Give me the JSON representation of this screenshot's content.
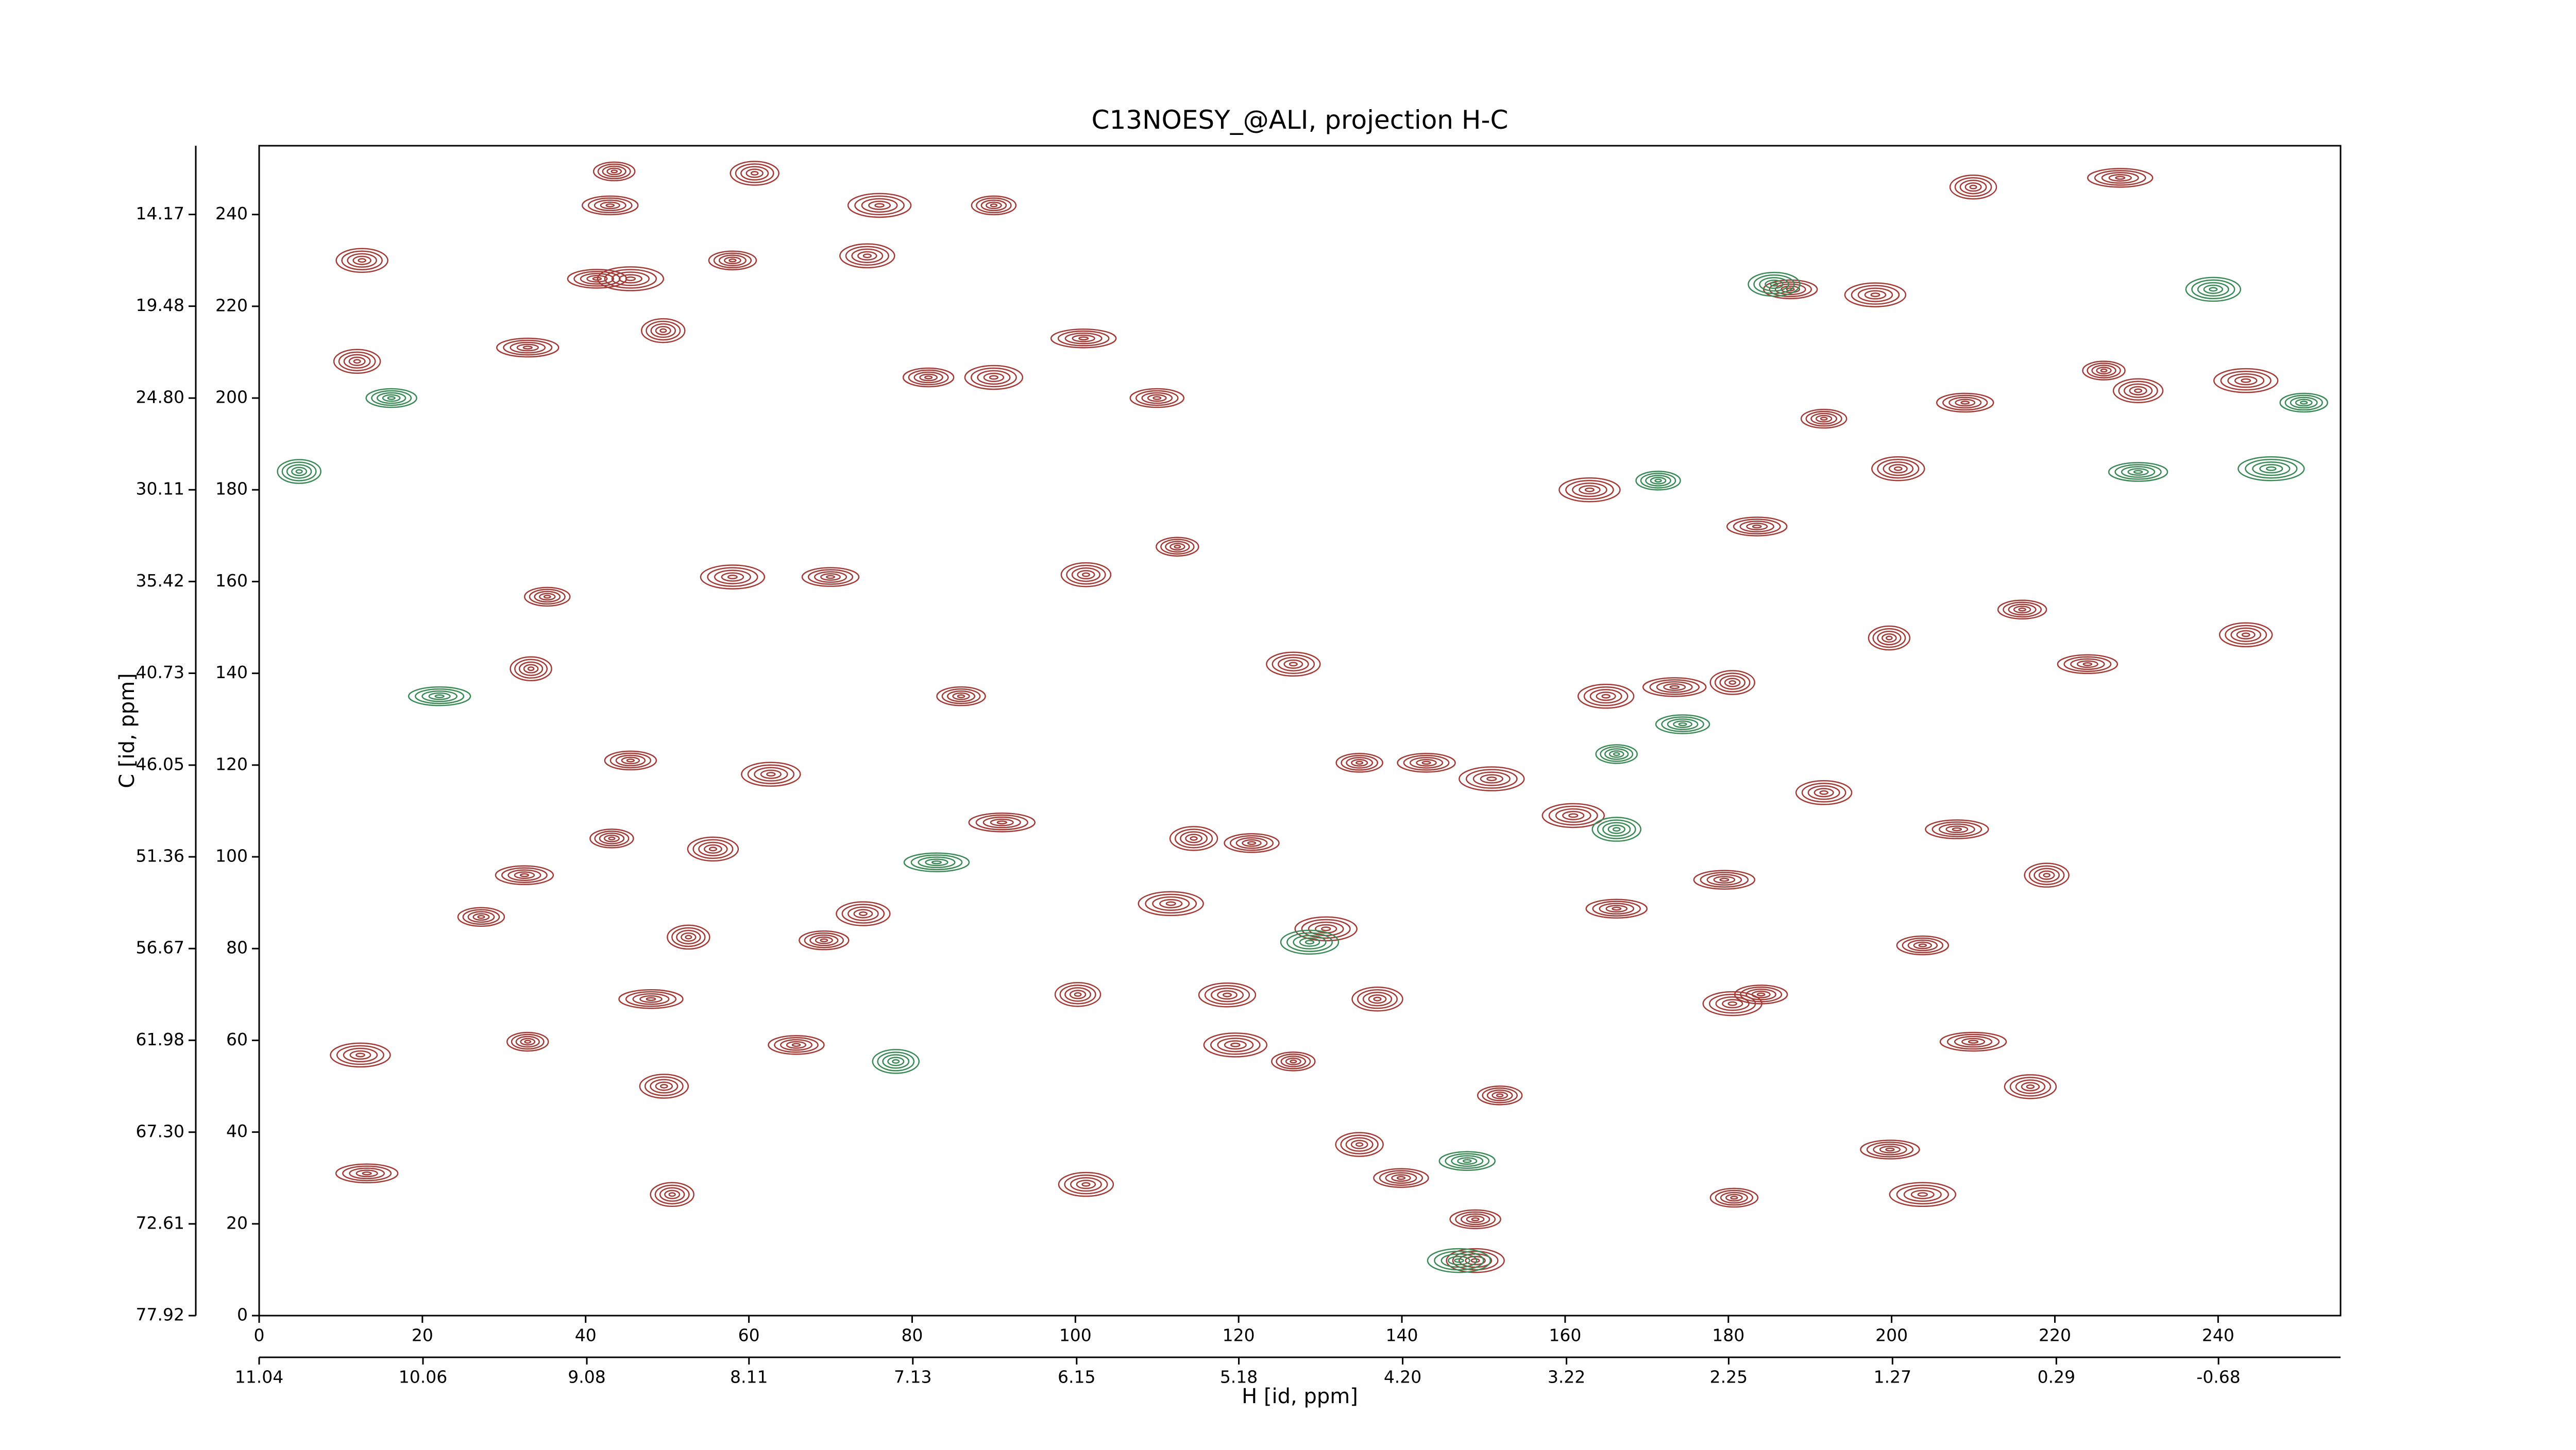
{
  "chart_data": {
    "type": "contour",
    "title": "C13NOESY_@ALI, projection H-C",
    "xlabel": "H [id, ppm]",
    "ylabel": "C [id, ppm]",
    "xlim": [
      0,
      255
    ],
    "ylim": [
      0,
      255
    ],
    "xticks": [
      0,
      20,
      40,
      60,
      80,
      100,
      120,
      140,
      160,
      180,
      200,
      220,
      240
    ],
    "yticks": [
      0,
      20,
      40,
      60,
      80,
      100,
      120,
      140,
      160,
      180,
      200,
      220,
      240
    ],
    "x2lim": [
      11.04,
      -1.41
    ],
    "x2ticks": [
      11.04,
      10.06,
      9.08,
      8.11,
      7.13,
      6.15,
      5.18,
      {
        "value": 4.2,
        "label": "4.20"
      },
      3.22,
      2.25,
      1.27,
      0.29,
      -0.68
    ],
    "y2lim": [
      77.92,
      10.19
    ],
    "y2ticks": [
      77.92,
      72.61,
      {
        "value": 67.3,
        "label": "67.30"
      },
      61.98,
      56.67,
      51.36,
      46.05,
      40.73,
      35.42,
      30.11,
      {
        "value": 24.8,
        "label": "24.80"
      },
      19.48,
      14.17
    ],
    "series": [
      {
        "color": "#a33a35",
        "x": [
          43.5,
          60.7,
          43,
          76,
          90,
          12.6,
          41.4,
          45.5,
          58,
          74.5,
          32.9,
          49.5,
          82,
          90,
          101,
          12,
          110,
          163,
          112.5,
          101.3,
          70,
          58,
          35.3,
          243.4,
          224,
          33.3,
          86,
          165,
          173.4,
          180.5,
          45.5,
          62.7,
          91,
          114.5,
          121.6,
          161,
          43.2,
          55.6,
          32.5,
          111.7,
          27.2,
          74,
          166.3,
          52.6,
          69.2,
          118.6,
          48,
          100.3,
          184,
          12.4,
          32.9,
          49.6,
          65.8,
          119.6,
          152,
          217,
          199.8,
          203.8,
          180.7,
          101.3,
          13.2,
          50.6,
          149,
          149,
          228,
          210,
          187.6,
          198,
          226,
          230.2,
          209,
          243.4,
          191.7,
          200.8,
          183.5,
          199.7,
          216,
          191.7,
          208,
          219,
          203.8,
          180.5,
          210,
          134.8,
          139.9,
          130.7,
          126.7,
          137,
          143,
          151,
          134.8,
          126.7,
          179.5
        ],
        "y": [
          249.4,
          249,
          242,
          242,
          242,
          230,
          226,
          226,
          230,
          231,
          211,
          214.7,
          204.5,
          204.5,
          213,
          208,
          200,
          180,
          167.6,
          161.5,
          161,
          161,
          156.7,
          148.4,
          142,
          141,
          135,
          135,
          137,
          138,
          121,
          118,
          107.5,
          104,
          103,
          109,
          104,
          101.7,
          96,
          89.8,
          86.9,
          87.6,
          88.7,
          82.5,
          81.8,
          69.9,
          69,
          70,
          70,
          56.8,
          59.7,
          50,
          59,
          59,
          48,
          49.9,
          36.2,
          26.4,
          25.7,
          28.6,
          31,
          26.4,
          21,
          12,
          248,
          246,
          223.7,
          222.5,
          206,
          201.6,
          199,
          203.8,
          195.5,
          184.6,
          172,
          147.7,
          153.9,
          114,
          106,
          96,
          80.7,
          68,
          59.7,
          37.3,
          30,
          84.3,
          55.4,
          69,
          120.5,
          117,
          120.5,
          142,
          95
        ]
      },
      {
        "color": "#3a8a55",
        "x": [
          166.3,
          166.3,
          148,
          147,
          171.4,
          185.6,
          230.2,
          246.5,
          250.5,
          239.4,
          22.1,
          4.9,
          16.2,
          128.7,
          83,
          78,
          174.4
        ],
        "y": [
          122.4,
          106,
          33.7,
          12,
          182,
          224.8,
          183.9,
          184.6,
          199,
          223.7,
          135,
          184,
          200,
          81.4,
          98.8,
          55.4,
          128.9
        ]
      }
    ]
  }
}
